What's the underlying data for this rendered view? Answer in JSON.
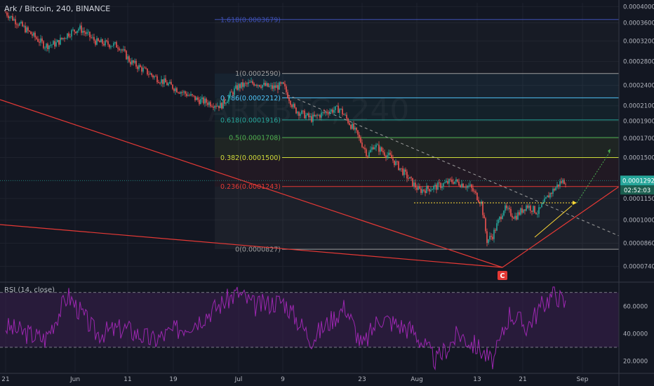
{
  "header": {
    "title": "Ark / Bitcoin, 240, BINANCE"
  },
  "watermark": {
    "text": "ARKBTC, 240"
  },
  "rsi": {
    "label": "RSI (14, close)"
  },
  "colors": {
    "background": "#131722",
    "candle_up": "#26a69a",
    "candle_down": "#ef5350",
    "rsi_line": "#9c27b0",
    "rsi_band": "#3a1f4f",
    "trendline": "#e53935",
    "price_tag": "#26a69a",
    "countdown_tag": "#1b5e4f",
    "marker": "#e53935",
    "projection": "#4caf50",
    "wedge_upper": "#fdd835"
  },
  "chart_data": {
    "type": "candlestick",
    "symbol": "Ark / Bitcoin",
    "interval": "240",
    "exchange": "BINANCE",
    "x_tick_labels": [
      "21",
      "Jun",
      "11",
      "19",
      "Jul",
      "9",
      "23",
      "Aug",
      "13",
      "21",
      "Sep"
    ],
    "y_tick_labels": [
      "0.0004000",
      "0.0003600",
      "0.0003200",
      "0.0002800",
      "0.0002400",
      "0.0002100",
      "0.0001900",
      "0.0001700",
      "0.0001500",
      "0.0001150",
      "0.0001000",
      "0.0000860",
      "0.0000740"
    ],
    "ylim": [
      6.8e-05,
      0.00041
    ],
    "y_scale": "log",
    "last_price": "0.0001292",
    "countdown": "02:52:03",
    "price_path": [
      {
        "x": "May 21",
        "y": 0.000385
      },
      {
        "x": "May 25",
        "y": 0.00034
      },
      {
        "x": "May 28",
        "y": 0.00031
      },
      {
        "x": "May 30",
        "y": 0.000315
      },
      {
        "x": "Jun 1",
        "y": 0.000335
      },
      {
        "x": "Jun 3",
        "y": 0.000348
      },
      {
        "x": "Jun 6",
        "y": 0.000318
      },
      {
        "x": "Jun 10",
        "y": 0.00031
      },
      {
        "x": "Jun 12",
        "y": 0.00028
      },
      {
        "x": "Jun 16",
        "y": 0.000255
      },
      {
        "x": "Jun 20",
        "y": 0.000235
      },
      {
        "x": "Jun 24",
        "y": 0.000218
      },
      {
        "x": "Jun 28",
        "y": 0.00021
      },
      {
        "x": "Jul 1",
        "y": 0.000238
      },
      {
        "x": "Jul 4",
        "y": 0.000244
      },
      {
        "x": "Jul 7",
        "y": 0.000236
      },
      {
        "x": "Jul 9",
        "y": 0.00024
      },
      {
        "x": "Jul 11",
        "y": 0.000205
      },
      {
        "x": "Jul 14",
        "y": 0.000193
      },
      {
        "x": "Jul 17",
        "y": 0.000203
      },
      {
        "x": "Jul 19",
        "y": 0.000206
      },
      {
        "x": "Jul 22",
        "y": 0.000175
      },
      {
        "x": "Jul 24",
        "y": 0.000152
      },
      {
        "x": "Jul 25",
        "y": 0.000163
      },
      {
        "x": "Jul 28",
        "y": 0.00015
      },
      {
        "x": "Jul 31",
        "y": 0.000132
      },
      {
        "x": "Aug 2",
        "y": 0.000121
      },
      {
        "x": "Aug 5",
        "y": 0.000124
      },
      {
        "x": "Aug 8",
        "y": 0.000129
      },
      {
        "x": "Aug 11",
        "y": 0.000124
      },
      {
        "x": "Aug 13",
        "y": 0.000112
      },
      {
        "x": "Aug 14",
        "y": 8.75e-05
      },
      {
        "x": "Aug 15",
        "y": 9.05e-05
      },
      {
        "x": "Aug 17",
        "y": 0.000108
      },
      {
        "x": "Aug 19",
        "y": 0.000102
      },
      {
        "x": "Aug 21",
        "y": 0.00011
      },
      {
        "x": "Aug 23",
        "y": 0.000105
      },
      {
        "x": "Aug 25",
        "y": 0.000118
      },
      {
        "x": "Aug 27",
        "y": 0.000128
      },
      {
        "x": "Aug 28",
        "y": 0.0001292
      }
    ],
    "fibonacci": [
      {
        "ratio": "1.618",
        "value": 0.0003679,
        "label": "1.618(0.0003679)",
        "color": "#3f51b5"
      },
      {
        "ratio": "1",
        "value": 0.000259,
        "label": "1(0.0002590)",
        "color": "#9e9e9e"
      },
      {
        "ratio": "0.786",
        "value": 0.0002212,
        "label": "0.786(0.0002212)",
        "color": "#4fc3f7"
      },
      {
        "ratio": "0.618",
        "value": 0.0001916,
        "label": "0.618(0.0001916)",
        "color": "#26a69a"
      },
      {
        "ratio": "0.5",
        "value": 0.0001708,
        "label": "0.5(0.0001708)",
        "color": "#4caf50"
      },
      {
        "ratio": "0.382",
        "value": 0.00015,
        "label": "0.382(0.0001500)",
        "color": "#cddc39"
      },
      {
        "ratio": "0.236",
        "value": 0.0001243,
        "label": "0.236(0.0001243)",
        "color": "#e53935"
      },
      {
        "ratio": "0",
        "value": 8.27e-05,
        "label": "0(0.0000827)",
        "color": "#9e9e9e"
      }
    ],
    "annotations": {
      "marker_label": "C"
    },
    "rsi": {
      "name": "RSI (14, close)",
      "period": 14,
      "band": [
        30,
        70
      ],
      "ylim": [
        12,
        76
      ],
      "y_tick_labels": [
        "60.0000",
        "40.0000",
        "20.0000"
      ],
      "path": [
        {
          "x": "May 21",
          "y": 45
        },
        {
          "x": "May 28",
          "y": 36
        },
        {
          "x": "Jun 1",
          "y": 68
        },
        {
          "x": "Jun 6",
          "y": 40
        },
        {
          "x": "Jun 11",
          "y": 44
        },
        {
          "x": "Jun 16",
          "y": 35
        },
        {
          "x": "Jun 24",
          "y": 50
        },
        {
          "x": "Jul 1",
          "y": 70
        },
        {
          "x": "Jul 4",
          "y": 60
        },
        {
          "x": "Jul 9",
          "y": 64
        },
        {
          "x": "Jul 14",
          "y": 36
        },
        {
          "x": "Jul 20",
          "y": 60
        },
        {
          "x": "Jul 23",
          "y": 30
        },
        {
          "x": "Jul 26",
          "y": 52
        },
        {
          "x": "Aug 1",
          "y": 42
        },
        {
          "x": "Aug 5",
          "y": 20
        },
        {
          "x": "Aug 9",
          "y": 40
        },
        {
          "x": "Aug 13",
          "y": 28
        },
        {
          "x": "Aug 15",
          "y": 18
        },
        {
          "x": "Aug 18",
          "y": 55
        },
        {
          "x": "Aug 21",
          "y": 45
        },
        {
          "x": "Aug 24",
          "y": 62
        },
        {
          "x": "Aug 26",
          "y": 70
        },
        {
          "x": "Aug 28",
          "y": 60
        }
      ]
    }
  }
}
